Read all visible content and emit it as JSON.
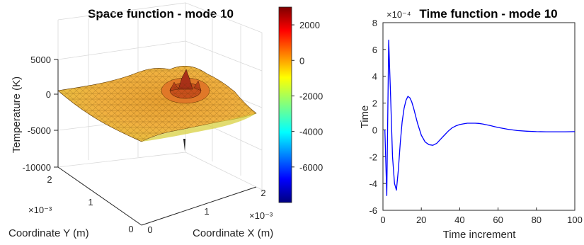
{
  "chart_data": [
    {
      "type": "surface3d",
      "title": "Space function - mode 10",
      "xlabel": "Coordinate X (m)",
      "ylabel": "Coordinate Y (m)",
      "zlabel": "Temperature (K)",
      "x_multiplier": "×10⁻³",
      "y_multiplier": "×10⁻³",
      "xlim": [
        0,
        0.0022
      ],
      "ylim": [
        0,
        0.0022
      ],
      "zlim": [
        -10000,
        5000
      ],
      "x_ticks": [
        "0",
        "1",
        "2"
      ],
      "y_ticks": [
        "0",
        "1",
        "2"
      ],
      "z_ticks": [
        "5000",
        "0",
        "-5000",
        "-10000"
      ],
      "colorbar": {
        "colormap": "jet",
        "range": [
          -8000,
          3000
        ],
        "ticks": [
          "2000",
          "0",
          "-2000",
          "-4000",
          "-6000"
        ],
        "tick_values": [
          2000,
          0,
          -2000,
          -4000,
          -6000
        ]
      }
    },
    {
      "type": "line",
      "title": "Time function - mode 10",
      "xlabel": "Time increment",
      "ylabel": "Time",
      "y_multiplier": "×10⁻⁴",
      "xlim": [
        0,
        100
      ],
      "ylim": [
        -6,
        8
      ],
      "x_ticks": [
        0,
        20,
        40,
        60,
        80,
        100
      ],
      "y_ticks": [
        8,
        6,
        4,
        2,
        0,
        -2,
        -4,
        -6
      ],
      "series": [
        {
          "color": "#0000ff",
          "x": [
            1,
            2,
            3,
            4,
            5,
            6,
            7,
            8,
            9,
            10,
            11,
            12,
            13,
            14,
            15,
            16,
            18,
            20,
            22,
            24,
            26,
            28,
            30,
            32,
            34,
            36,
            38,
            40,
            42,
            44,
            46,
            48,
            50,
            52,
            54,
            56,
            58,
            60,
            65,
            70,
            75,
            80,
            85,
            90,
            95,
            100
          ],
          "y": [
            0,
            -4.9,
            6.7,
            2.5,
            -2.0,
            -4.0,
            -4.5,
            -3.0,
            -1.0,
            0.6,
            1.6,
            2.2,
            2.5,
            2.4,
            2.1,
            1.6,
            0.5,
            -0.4,
            -0.9,
            -1.1,
            -1.15,
            -1.0,
            -0.7,
            -0.4,
            -0.1,
            0.15,
            0.3,
            0.4,
            0.45,
            0.5,
            0.5,
            0.5,
            0.48,
            0.44,
            0.38,
            0.32,
            0.25,
            0.18,
            0.05,
            -0.05,
            -0.1,
            -0.13,
            -0.14,
            -0.14,
            -0.14,
            -0.13
          ]
        }
      ]
    }
  ]
}
